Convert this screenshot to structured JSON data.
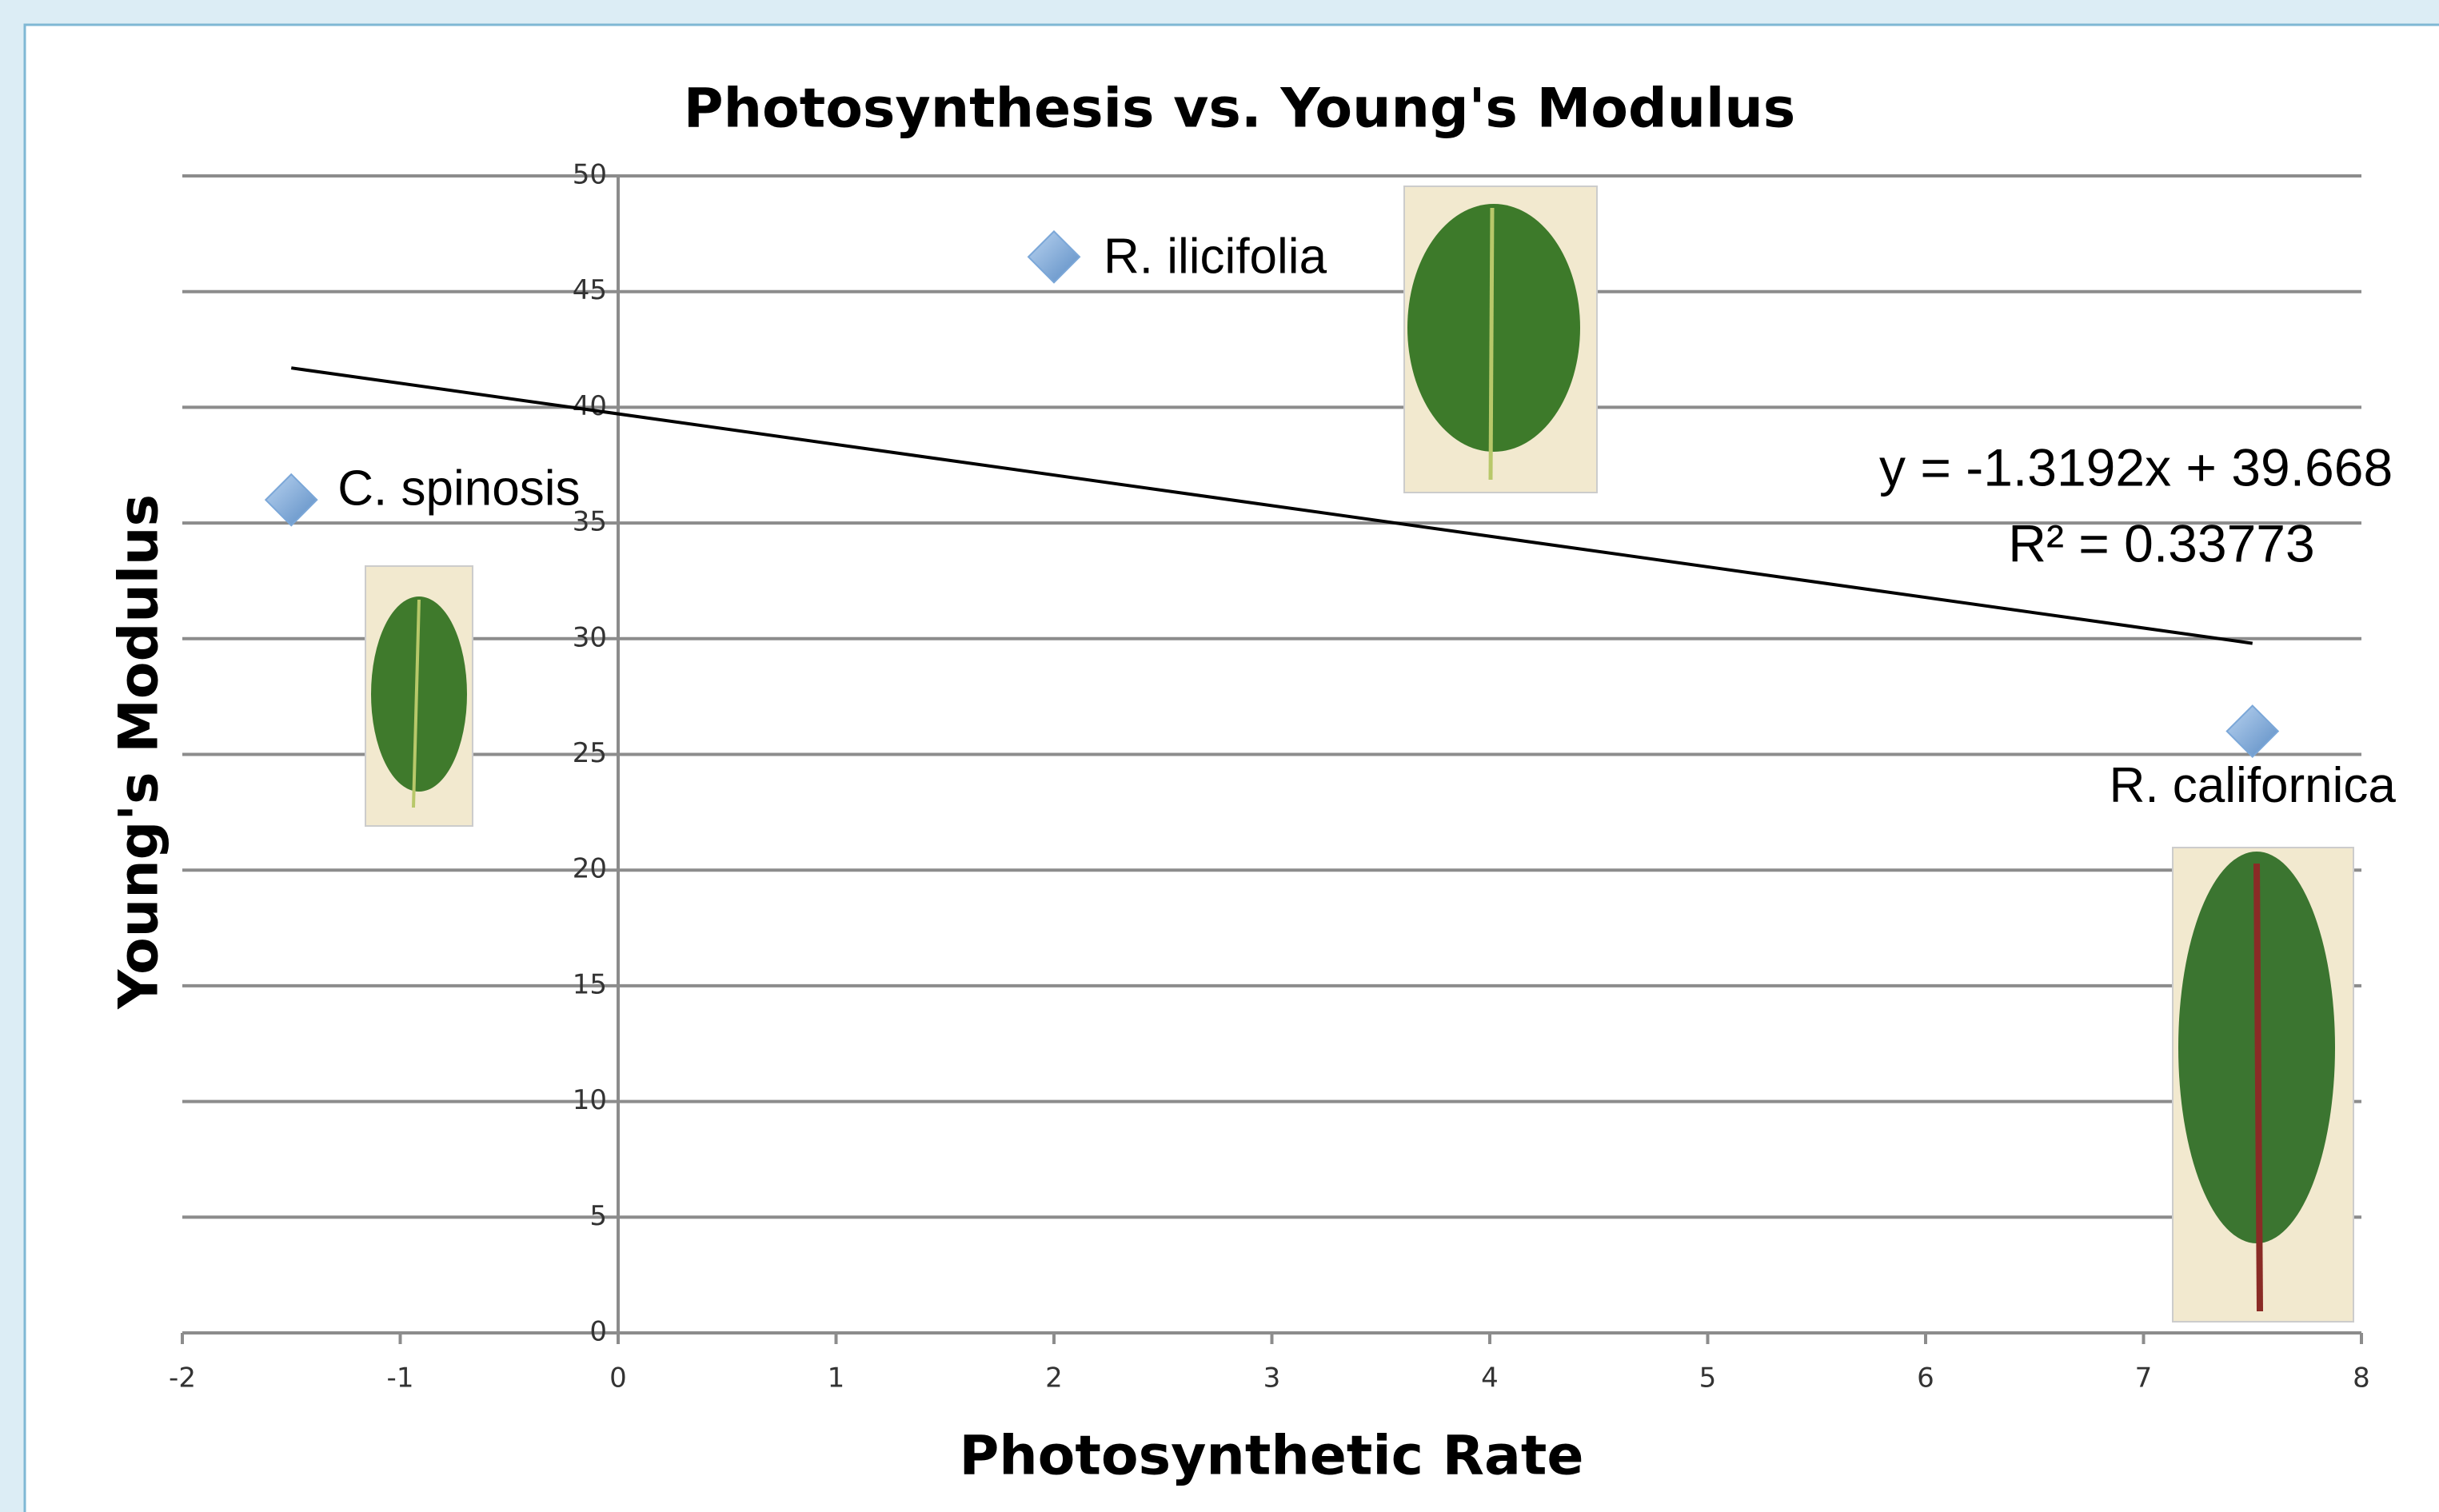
{
  "chart_data": {
    "type": "scatter",
    "title": "Photosynthesis vs. Young's Modulus",
    "xlabel": "Photosynthetic Rate",
    "ylabel": "Young's Modulus",
    "series": [
      {
        "name": null,
        "color": "#7ba7d8",
        "x": [
          -1.5,
          2,
          7.5
        ],
        "values": [
          36,
          46.5,
          26
        ],
        "point_labels": [
          "C. spinosis",
          "R. ilicifolia",
          "R. californica"
        ]
      }
    ],
    "trendline": {
      "x": [
        -1.5,
        7.5
      ],
      "values": [
        41.7,
        29.8
      ],
      "equation": "y = -1.3192x + 39.668",
      "r_squared": "R² = 0.33773",
      "color": "#000000"
    },
    "xlim": [
      -2,
      8
    ],
    "xticks": [
      -2,
      -1,
      0,
      1,
      2,
      3,
      4,
      5,
      6,
      7,
      8
    ],
    "ylim": [
      0,
      50
    ],
    "yticks": [
      0,
      5,
      10,
      15,
      20,
      25,
      30,
      35,
      40,
      45,
      50
    ],
    "grid": true
  }
}
